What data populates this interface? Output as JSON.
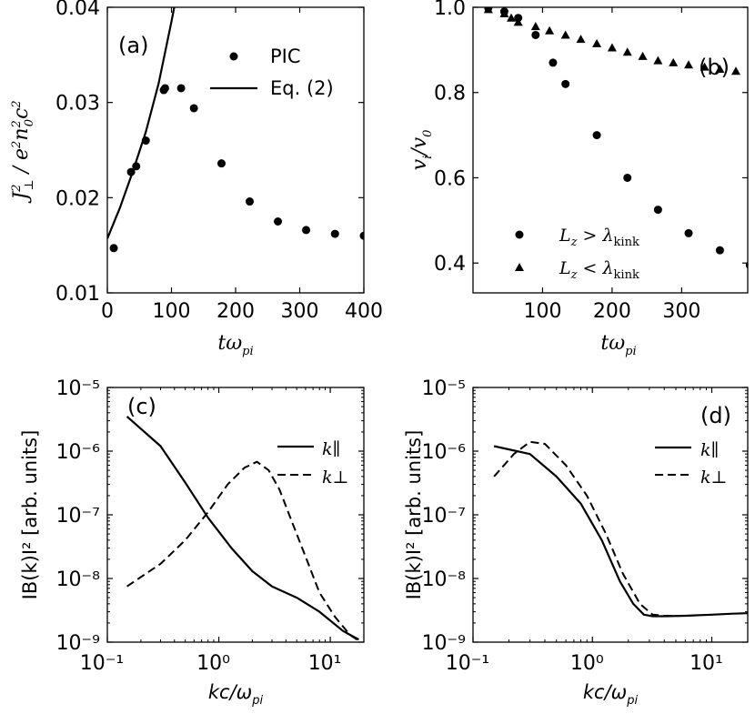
{
  "chart_data": [
    {
      "type": "scatter",
      "panel_label": "(a)",
      "xlabel": "tω_pi",
      "ylabel": "J⊥² / e²n₀²c²",
      "xlim": [
        0,
        400
      ],
      "ylim": [
        0.01,
        0.04
      ],
      "xticks": [
        "0",
        "100",
        "200",
        "300",
        "400"
      ],
      "yticks": [
        "0.01",
        "0.02",
        "0.03",
        "0.04"
      ],
      "legend_position": "top-right",
      "series": [
        {
          "name": "PIC",
          "style": "markers-circle",
          "x": [
            10,
            37,
            45,
            60,
            88,
            90,
            115,
            135,
            178,
            222,
            266,
            310,
            355,
            400
          ],
          "y": [
            0.0147,
            0.0227,
            0.0233,
            0.026,
            0.0313,
            0.0315,
            0.0315,
            0.0294,
            0.0236,
            0.0196,
            0.0175,
            0.0166,
            0.0162,
            0.016
          ]
        },
        {
          "name": "Eq. (2)",
          "style": "line",
          "x": [
            0,
            20,
            40,
            60,
            80,
            100,
            110
          ],
          "y": [
            0.0157,
            0.019,
            0.0228,
            0.0269,
            0.032,
            0.0385,
            0.042
          ]
        }
      ]
    },
    {
      "type": "scatter",
      "panel_label": "(b)",
      "xlabel": "tω_pi",
      "ylabel": "v_i/v_0",
      "xlim": [
        0,
        395
      ],
      "ylim": [
        0.33,
        1.0
      ],
      "xticks": [
        "100",
        "200",
        "300"
      ],
      "yticks": [
        "0.4",
        "0.6",
        "0.8",
        "1.0"
      ],
      "legend_position": "bottom-right",
      "series": [
        {
          "name": "L_z > λ_kink",
          "style": "markers-circle",
          "x": [
            22,
            45,
            65,
            90,
            115,
            133,
            178,
            222,
            266,
            310,
            355,
            398
          ],
          "y": [
            0.998,
            0.99,
            0.975,
            0.935,
            0.87,
            0.82,
            0.7,
            0.6,
            0.525,
            0.47,
            0.43,
            0.395
          ]
        },
        {
          "name": "L_z < λ_kink",
          "style": "markers-triangle",
          "x": [
            22,
            45,
            55,
            65,
            90,
            110,
            133,
            155,
            178,
            200,
            222,
            244,
            266,
            288,
            310,
            333,
            355,
            378
          ],
          "y": [
            0.995,
            0.985,
            0.975,
            0.965,
            0.955,
            0.945,
            0.935,
            0.925,
            0.915,
            0.905,
            0.895,
            0.885,
            0.875,
            0.87,
            0.865,
            0.86,
            0.855,
            0.85
          ]
        }
      ]
    },
    {
      "type": "line",
      "panel_label": "(c)",
      "xlabel": "kc/ω_pi",
      "ylabel": "IB(k)I² [arb. units]",
      "xscale": "log",
      "yscale": "log",
      "xlim": [
        0.1,
        20
      ],
      "ylim": [
        1e-09,
        1e-05
      ],
      "xticks": [
        "10⁻¹",
        "10⁰",
        "10¹"
      ],
      "yticks": [
        "10⁻⁹",
        "10⁻⁸",
        "10⁻⁷",
        "10⁻⁶",
        "10⁻⁵"
      ],
      "legend_position": "right",
      "series": [
        {
          "name": "k∥",
          "style": "solid",
          "x": [
            0.15,
            0.3,
            0.5,
            0.8,
            1.3,
            2.0,
            3.0,
            5.0,
            8.0,
            13,
            18
          ],
          "y": [
            3.5e-06,
            1.2e-06,
            3.2e-07,
            9e-08,
            3e-08,
            1.3e-08,
            7.5e-09,
            5e-09,
            3e-09,
            1.5e-09,
            1.1e-09
          ]
        },
        {
          "name": "k⊥",
          "style": "dashed",
          "x": [
            0.15,
            0.3,
            0.5,
            0.8,
            1.2,
            1.7,
            2.2,
            2.8,
            3.5,
            4.5,
            6.0,
            8.0,
            11,
            15,
            18
          ],
          "y": [
            7.5e-09,
            1.7e-08,
            4e-08,
            1.1e-07,
            3e-07,
            5.5e-07,
            6.8e-07,
            5e-07,
            2.5e-07,
            8e-08,
            2.2e-08,
            6e-09,
            2.5e-09,
            1.3e-09,
            1.05e-09
          ]
        }
      ]
    },
    {
      "type": "line",
      "panel_label": "(d)",
      "xlabel": "kc/ω_pi",
      "ylabel": "IB(k)I² [arb. units]",
      "xscale": "log",
      "yscale": "log",
      "xlim": [
        0.1,
        20
      ],
      "ylim": [
        1e-09,
        1e-05
      ],
      "xticks": [
        "10⁻¹",
        "10⁰",
        "10¹"
      ],
      "yticks": [
        "10⁻⁹",
        "10⁻⁸",
        "10⁻⁷",
        "10⁻⁶",
        "10⁻⁵"
      ],
      "legend_position": "right",
      "series": [
        {
          "name": "k∥",
          "style": "solid",
          "x": [
            0.15,
            0.3,
            0.5,
            0.8,
            1.2,
            1.7,
            2.2,
            2.7,
            3.2,
            4.0,
            6.0,
            10,
            15,
            20
          ],
          "y": [
            1.2e-06,
            9e-07,
            4e-07,
            1.5e-07,
            4e-08,
            9e-09,
            4e-09,
            2.7e-09,
            2.55e-09,
            2.55e-09,
            2.6e-09,
            2.7e-09,
            2.8e-09,
            2.85e-09
          ]
        },
        {
          "name": "k⊥",
          "style": "dashed",
          "x": [
            0.15,
            0.22,
            0.3,
            0.4,
            0.6,
            0.9,
            1.3,
            1.8,
            2.5,
            3.2,
            4.0,
            6.0
          ],
          "y": [
            4e-07,
            9e-07,
            1.4e-06,
            1.3e-06,
            6e-07,
            2e-07,
            5e-08,
            1.2e-08,
            4e-09,
            2.7e-09,
            2.6e-09,
            2.6e-09
          ]
        }
      ]
    }
  ]
}
